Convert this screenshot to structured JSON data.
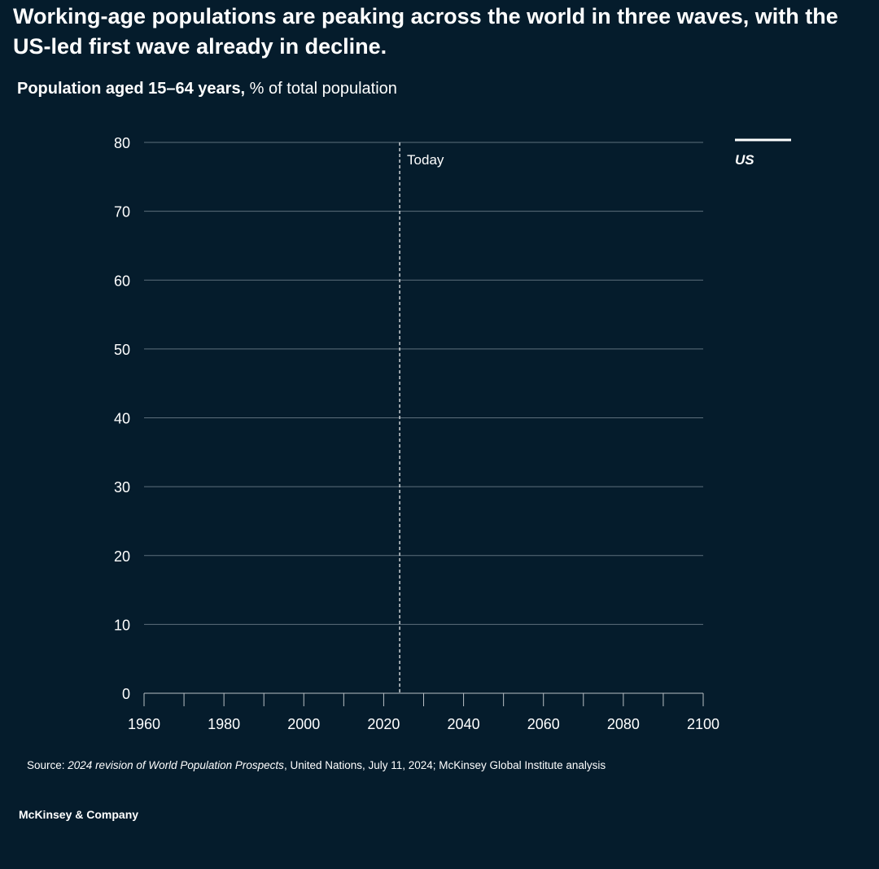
{
  "title": "Working-age populations are peaking across the world in three waves, with the US-led first wave already in decline.",
  "subtitle": {
    "bold": "Population aged 15–64 years,",
    "regular": " % of total population"
  },
  "colors": {
    "background": "#051c2c",
    "grid": "#5d6f7b",
    "text": "#ffffff",
    "series_us": "#ffffff"
  },
  "chart_data": {
    "type": "line",
    "title": "",
    "xlabel": "",
    "ylabel": "",
    "xlim": [
      1960,
      2100
    ],
    "ylim": [
      0,
      80
    ],
    "x_ticks": [
      1960,
      1980,
      2000,
      2020,
      2040,
      2060,
      2080,
      2100
    ],
    "x_minor_step": 10,
    "y_ticks": [
      0,
      10,
      20,
      30,
      40,
      50,
      60,
      70,
      80
    ],
    "grid": true,
    "legend_placement": "right",
    "series": [
      {
        "name": "US",
        "values": []
      }
    ],
    "annotations": [
      {
        "x": 2024,
        "label": "Today",
        "style": "dashed-vertical"
      }
    ]
  },
  "source": {
    "prefix": "Source: ",
    "italic": "2024 revision of World Population Prospects",
    "rest": ", United Nations, July 11, 2024; McKinsey Global Institute analysis"
  },
  "brand": "McKinsey & Company"
}
